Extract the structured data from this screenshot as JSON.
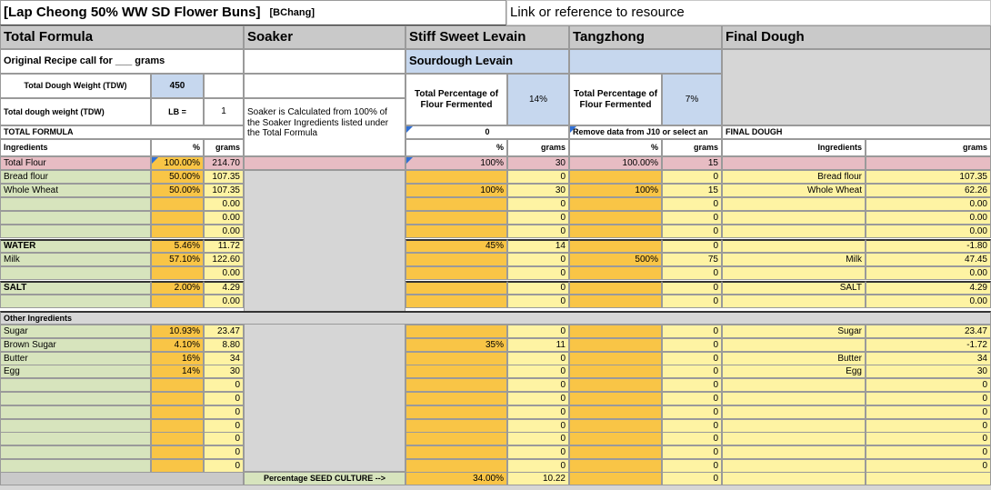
{
  "title": {
    "main": "[Lap Cheong 50% WW SD Flower Buns]",
    "author": "[BChang]",
    "link": "Link or reference to resource"
  },
  "sections": {
    "total_formula": "Total Formula",
    "soaker": "Soaker",
    "levain": "Stiff Sweet Levain",
    "tangzhong": "Tangzhong",
    "final_dough": "Final Dough"
  },
  "total_formula": {
    "original_recipe": "Original Recipe call for ___ grams",
    "tdw_label": "Total Dough Weight (TDW)",
    "tdw_value": "450",
    "tdw_lb_label": "Total dough weight (TDW)",
    "lb_label": "LB =",
    "lb_value": "1",
    "section_label": "TOTAL FORMULA",
    "col_ingredients": "Ingredients",
    "col_pct": "%",
    "col_grams": "grams",
    "total_flour_label": "Total Flour",
    "total_flour_pct": "100.00%",
    "total_flour_grams": "214.70",
    "water_label": "WATER",
    "salt_label": "SALT",
    "other_label": "Other Ingredients",
    "footer_label": "Percentage SEED CULTURE -->"
  },
  "soaker": {
    "note": "Soaker is Calculated from 100% of the Soaker Ingredients listed under the Total Formula"
  },
  "levain": {
    "subheader": "Sourdough Levain",
    "pct_fermented_label": "Total Percentage of Flour Fermented",
    "pct_fermented_value": "14%",
    "zero_value": "0",
    "col_pct": "%",
    "col_grams": "grams",
    "total_flour_pct": "100%",
    "total_flour_grams": "30",
    "seed_pct": "34.00%",
    "seed_grams": "10.22"
  },
  "tangzhong": {
    "pct_fermented_label": "Total Percentage of Flour Fermented",
    "pct_fermented_value": "7%",
    "note": "Remove data from J10 or select an",
    "col_pct": "%",
    "col_grams": "grams",
    "total_flour_pct": "100.00%",
    "total_flour_grams": "15"
  },
  "final_dough": {
    "section_label": "FINAL DOUGH",
    "col_ingredients": "Ingredients",
    "col_grams": "grams"
  },
  "rows": [
    {
      "name": "Bread flour",
      "pct": "50.00%",
      "grams": "107.35",
      "lev_pct": "",
      "lev_g": "0",
      "tz_pct": "",
      "tz_g": "0",
      "fd_name": "Bread flour",
      "fd_g": "107.35"
    },
    {
      "name": "Whole Wheat",
      "pct": "50.00%",
      "grams": "107.35",
      "lev_pct": "100%",
      "lev_g": "30",
      "tz_pct": "100%",
      "tz_g": "15",
      "fd_name": "Whole Wheat",
      "fd_g": "62.26"
    },
    {
      "name": "",
      "pct": "",
      "grams": "0.00",
      "lev_pct": "",
      "lev_g": "0",
      "tz_pct": "",
      "tz_g": "0",
      "fd_name": "",
      "fd_g": "0.00"
    },
    {
      "name": "",
      "pct": "",
      "grams": "0.00",
      "lev_pct": "",
      "lev_g": "0",
      "tz_pct": "",
      "tz_g": "0",
      "fd_name": "",
      "fd_g": "0.00"
    },
    {
      "name": "",
      "pct": "",
      "grams": "0.00",
      "lev_pct": "",
      "lev_g": "0",
      "tz_pct": "",
      "tz_g": "0",
      "fd_name": "",
      "fd_g": "0.00"
    },
    {
      "name": "WATER",
      "pct": "5.46%",
      "grams": "11.72",
      "lev_pct": "45%",
      "lev_g": "14",
      "tz_pct": "",
      "tz_g": "0",
      "fd_name": "",
      "fd_g": "-1.80"
    },
    {
      "name": "Milk",
      "pct": "57.10%",
      "grams": "122.60",
      "lev_pct": "",
      "lev_g": "0",
      "tz_pct": "500%",
      "tz_g": "75",
      "fd_name": "Milk",
      "fd_g": "47.45"
    },
    {
      "name": "",
      "pct": "",
      "grams": "0.00",
      "lev_pct": "",
      "lev_g": "0",
      "tz_pct": "",
      "tz_g": "0",
      "fd_name": "",
      "fd_g": "0.00"
    },
    {
      "name": "SALT",
      "pct": "2.00%",
      "grams": "4.29",
      "lev_pct": "",
      "lev_g": "0",
      "tz_pct": "",
      "tz_g": "0",
      "fd_name": "SALT",
      "fd_g": "4.29"
    },
    {
      "name": "",
      "pct": "",
      "grams": "0.00",
      "lev_pct": "",
      "lev_g": "0",
      "tz_pct": "",
      "tz_g": "0",
      "fd_name": "",
      "fd_g": "0.00"
    },
    {
      "name": "Sugar",
      "pct": "10.93%",
      "grams": "23.47",
      "lev_pct": "",
      "lev_g": "0",
      "tz_pct": "",
      "tz_g": "0",
      "fd_name": "Sugar",
      "fd_g": "23.47"
    },
    {
      "name": "Brown Sugar",
      "pct": "4.10%",
      "grams": "8.80",
      "lev_pct": "35%",
      "lev_g": "11",
      "tz_pct": "",
      "tz_g": "0",
      "fd_name": "",
      "fd_g": "-1.72"
    },
    {
      "name": "Butter",
      "pct": "16%",
      "grams": "34",
      "lev_pct": "",
      "lev_g": "0",
      "tz_pct": "",
      "tz_g": "0",
      "fd_name": "Butter",
      "fd_g": "34"
    },
    {
      "name": "Egg",
      "pct": "14%",
      "grams": "30",
      "lev_pct": "",
      "lev_g": "0",
      "tz_pct": "",
      "tz_g": "0",
      "fd_name": "Egg",
      "fd_g": "30"
    },
    {
      "name": "",
      "pct": "",
      "grams": "0",
      "lev_pct": "",
      "lev_g": "0",
      "tz_pct": "",
      "tz_g": "0",
      "fd_name": "",
      "fd_g": "0"
    },
    {
      "name": "",
      "pct": "",
      "grams": "0",
      "lev_pct": "",
      "lev_g": "0",
      "tz_pct": "",
      "tz_g": "0",
      "fd_name": "",
      "fd_g": "0"
    },
    {
      "name": "",
      "pct": "",
      "grams": "0",
      "lev_pct": "",
      "lev_g": "0",
      "tz_pct": "",
      "tz_g": "0",
      "fd_name": "",
      "fd_g": "0"
    },
    {
      "name": "",
      "pct": "",
      "grams": "0",
      "lev_pct": "",
      "lev_g": "0",
      "tz_pct": "",
      "tz_g": "0",
      "fd_name": "",
      "fd_g": "0"
    },
    {
      "name": "",
      "pct": "",
      "grams": "0",
      "lev_pct": "",
      "lev_g": "0",
      "tz_pct": "",
      "tz_g": "0",
      "fd_name": "",
      "fd_g": "0"
    },
    {
      "name": "",
      "pct": "",
      "grams": "0",
      "lev_pct": "",
      "lev_g": "0",
      "tz_pct": "",
      "tz_g": "0",
      "fd_name": "",
      "fd_g": "0"
    },
    {
      "name": "",
      "pct": "",
      "grams": "0",
      "lev_pct": "",
      "lev_g": "0",
      "tz_pct": "",
      "tz_g": "0",
      "fd_name": "",
      "fd_g": "0"
    },
    {
      "name": "",
      "pct": "",
      "grams": "0",
      "lev_pct": "",
      "lev_g": "0",
      "tz_pct": "",
      "tz_g": "0",
      "fd_name": "",
      "fd_g": "0"
    }
  ]
}
